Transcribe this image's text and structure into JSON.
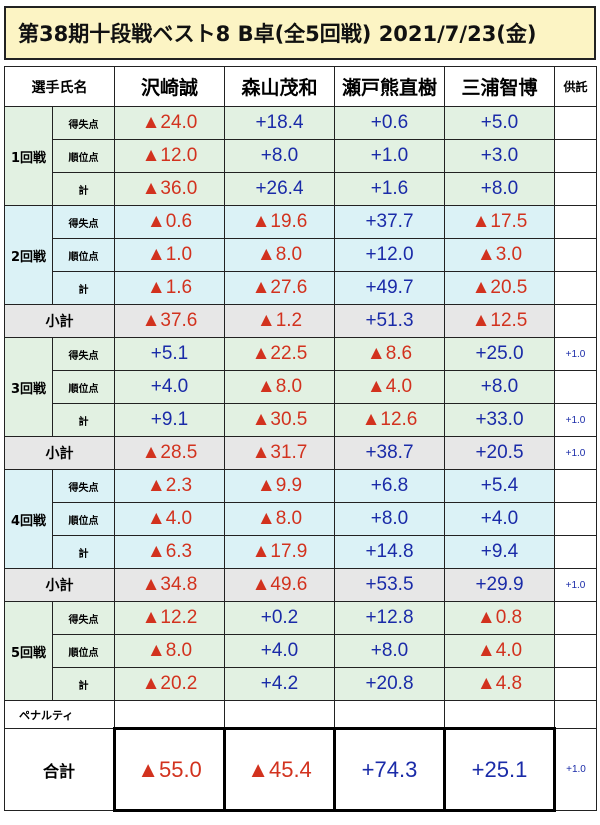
{
  "title": "第38期十段戦ベスト8 B卓(全5回戦) 2021/7/23(金)",
  "header": {
    "label": "選手氏名",
    "players": [
      "沢崎誠",
      "森山茂和",
      "瀬戸熊直樹",
      "三浦智博"
    ],
    "deposit_label": "供託"
  },
  "item_labels": {
    "points": "得失点",
    "rank": "順位点",
    "total": "計"
  },
  "rounds": [
    {
      "label": "1回戦",
      "points": [
        "▲24.0",
        "+18.4",
        "+0.6",
        "+5.0"
      ],
      "rank": [
        "▲12.0",
        "+8.0",
        "+1.0",
        "+3.0"
      ],
      "total": [
        "▲36.0",
        "+26.4",
        "+1.6",
        "+8.0"
      ],
      "points_deposit": "",
      "total_deposit": ""
    },
    {
      "label": "2回戦",
      "points": [
        "▲0.6",
        "▲19.6",
        "+37.7",
        "▲17.5"
      ],
      "rank": [
        "▲1.0",
        "▲8.0",
        "+12.0",
        "▲3.0"
      ],
      "total": [
        "▲1.6",
        "▲27.6",
        "+49.7",
        "▲20.5"
      ],
      "points_deposit": "",
      "total_deposit": ""
    },
    {
      "label": "3回戦",
      "points": [
        "+5.1",
        "▲22.5",
        "▲8.6",
        "+25.0"
      ],
      "rank": [
        "+4.0",
        "▲8.0",
        "▲4.0",
        "+8.0"
      ],
      "total": [
        "+9.1",
        "▲30.5",
        "▲12.6",
        "+33.0"
      ],
      "points_deposit": "+1.0",
      "total_deposit": "+1.0"
    },
    {
      "label": "4回戦",
      "points": [
        "▲2.3",
        "▲9.9",
        "+6.8",
        "+5.4"
      ],
      "rank": [
        "▲4.0",
        "▲8.0",
        "+8.0",
        "+4.0"
      ],
      "total": [
        "▲6.3",
        "▲17.9",
        "+14.8",
        "+9.4"
      ],
      "points_deposit": "",
      "total_deposit": ""
    },
    {
      "label": "5回戦",
      "points": [
        "▲12.2",
        "+0.2",
        "+12.8",
        "▲0.8"
      ],
      "rank": [
        "▲8.0",
        "+4.0",
        "+8.0",
        "▲4.0"
      ],
      "total": [
        "▲20.2",
        "+4.2",
        "+20.8",
        "▲4.8"
      ],
      "points_deposit": "",
      "total_deposit": ""
    }
  ],
  "subtotals": [
    {
      "label": "小計",
      "values": [
        "▲37.6",
        "▲1.2",
        "+51.3",
        "▲12.5"
      ],
      "deposit": ""
    },
    {
      "label": "小計",
      "values": [
        "▲28.5",
        "▲31.7",
        "+38.7",
        "+20.5"
      ],
      "deposit": "+1.0"
    },
    {
      "label": "小計",
      "values": [
        "▲34.8",
        "▲49.6",
        "+53.5",
        "+29.9"
      ],
      "deposit": "+1.0"
    }
  ],
  "penalty": {
    "label": "ペナルティ",
    "values": [
      "",
      "",
      "",
      ""
    ]
  },
  "grand_total": {
    "label": "合計",
    "values": [
      "▲55.0",
      "▲45.4",
      "+74.3",
      "+25.1"
    ],
    "deposit": "+1.0"
  },
  "colors": {
    "negative": "#d2321e",
    "positive": "#1a2ba8",
    "title_bg": "#fcf4c4",
    "green_band": "#e2f1e2",
    "cyan_band": "#dbf2f6",
    "subtotal_bg": "#e7e7e7"
  }
}
